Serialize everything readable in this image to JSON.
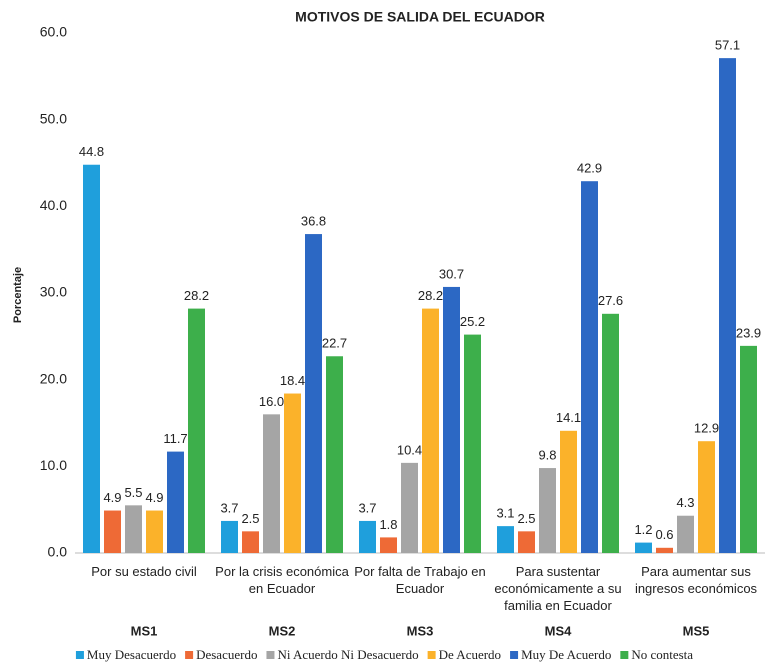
{
  "chart_data": {
    "type": "bar",
    "title": "MOTIVOS DE SALIDA DEL ECUADOR",
    "y_label": "Porcentaje",
    "categories": [
      "Por su estado civil",
      "Por la crisis económica en Ecuador",
      "Por falta de Trabajo en Ecuador",
      "Para sustentar económicamente a su familia en Ecuador",
      "Para aumentar sus ingresos económicos"
    ],
    "groups": [
      "MS1",
      "MS2",
      "MS3",
      "MS4",
      "MS5"
    ],
    "series": [
      {
        "name": "Muy Desacuerdo",
        "color": "#1f9fdc",
        "values": [
          44.8,
          3.7,
          3.7,
          3.1,
          1.2
        ]
      },
      {
        "name": "Desacuerdo",
        "color": "#ee6a36",
        "values": [
          4.9,
          2.5,
          1.8,
          2.5,
          0.6
        ]
      },
      {
        "name": "Ni Acuerdo Ni Desacuerdo",
        "color": "#a5a5a5",
        "values": [
          5.5,
          16.0,
          10.4,
          9.8,
          4.3
        ],
        "value_labels": [
          "5.5",
          "16.0",
          "10.4",
          "9.8",
          "4.3"
        ]
      },
      {
        "name": "De Acuerdo",
        "color": "#fbb22a",
        "values": [
          4.9,
          18.4,
          28.2,
          14.1,
          12.9
        ]
      },
      {
        "name": "Muy De Acuerdo",
        "color": "#2c68c4",
        "values": [
          11.7,
          36.8,
          30.7,
          42.9,
          57.1
        ]
      },
      {
        "name": "No contesta",
        "color": "#3daf4b",
        "values": [
          28.2,
          22.7,
          25.2,
          27.6,
          23.9
        ]
      }
    ],
    "ylim": [
      0,
      60
    ],
    "yticks": [
      {
        "value": 0,
        "label": "0.0"
      },
      {
        "value": 10,
        "label": "10.0"
      },
      {
        "value": 20,
        "label": "20.0"
      },
      {
        "value": 30,
        "label": "30.0"
      },
      {
        "value": 40,
        "label": "40.0"
      },
      {
        "value": 50,
        "label": "50.0"
      },
      {
        "value": 60,
        "label": "60.0"
      }
    ],
    "grid": false,
    "legend": "bottom"
  }
}
